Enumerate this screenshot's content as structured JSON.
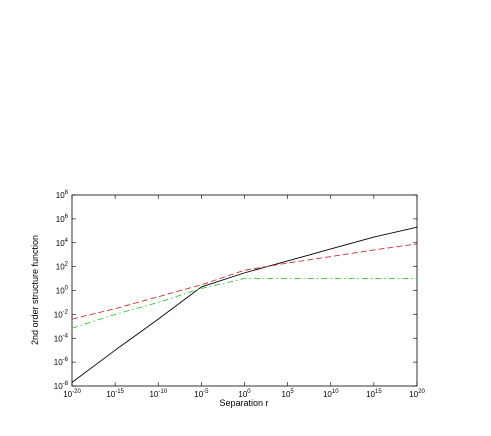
{
  "chart_data": {
    "type": "line",
    "xlabel": "Separation r",
    "ylabel": "2nd order structure function",
    "x_scale": "log",
    "y_scale": "log",
    "xlim": [
      1e-20,
      1e+20
    ],
    "ylim": [
      1e-08,
      100000000.0
    ],
    "x_ticks": [
      {
        "base": "10",
        "exp": "-20",
        "value": 1e-20
      },
      {
        "base": "10",
        "exp": "-15",
        "value": 1e-15
      },
      {
        "base": "10",
        "exp": "-10",
        "value": 1e-10
      },
      {
        "base": "10",
        "exp": "-5",
        "value": 1e-05
      },
      {
        "base": "10",
        "exp": "0",
        "value": 1
      },
      {
        "base": "10",
        "exp": "5",
        "value": 100000.0
      },
      {
        "base": "10",
        "exp": "10",
        "value": 10000000000.0
      },
      {
        "base": "10",
        "exp": "15",
        "value": 1000000000000000.0
      },
      {
        "base": "10",
        "exp": "20",
        "value": 1e+20
      }
    ],
    "y_ticks": [
      {
        "base": "10",
        "exp": "-8",
        "value": 1e-08
      },
      {
        "base": "10",
        "exp": "-6",
        "value": 1e-06
      },
      {
        "base": "10",
        "exp": "-4",
        "value": 0.0001
      },
      {
        "base": "10",
        "exp": "-2",
        "value": 0.01
      },
      {
        "base": "10",
        "exp": "0",
        "value": 1
      },
      {
        "base": "10",
        "exp": "2",
        "value": 100
      },
      {
        "base": "10",
        "exp": "4",
        "value": 10000.0
      },
      {
        "base": "10",
        "exp": "6",
        "value": 1000000.0
      },
      {
        "base": "10",
        "exp": "8",
        "value": 100000000.0
      }
    ],
    "series": [
      {
        "color": "#000000",
        "dash": "solid",
        "x": [
          1e-20,
          1e-15,
          1e-10,
          1e-05,
          1,
          100000.0,
          10000000000.0,
          1000000000000000.0,
          1e+20
        ],
        "y": [
          2e-08,
          1e-05,
          0.004,
          2,
          30,
          300,
          3000,
          30000.0,
          200000.0
        ]
      },
      {
        "color": "#cc3333",
        "dash": "dashed",
        "x": [
          1e-20,
          1e-15,
          1e-10,
          1e-05,
          1,
          100000.0,
          10000000000.0,
          1000000000000000.0,
          1e+20
        ],
        "y": [
          0.004,
          0.03,
          0.3,
          3,
          50,
          200,
          700,
          2500,
          8000
        ]
      },
      {
        "color": "#33cc33",
        "dash": "dashdot",
        "x": [
          1e-20,
          1e-15,
          1e-10,
          1e-05,
          1,
          100000.0,
          10000000000.0,
          1000000000000000.0,
          1e+20
        ],
        "y": [
          0.0007,
          0.01,
          0.1,
          1.5,
          10,
          10,
          10,
          10,
          10
        ]
      }
    ]
  }
}
